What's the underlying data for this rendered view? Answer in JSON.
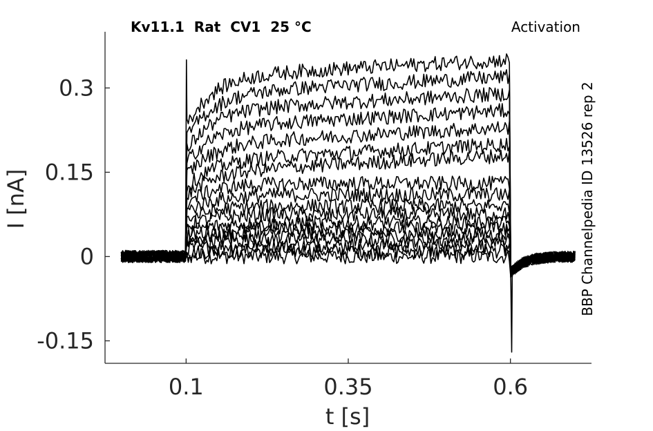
{
  "header": {
    "title": "Kv11.1  Rat  CV1  25 °C",
    "protocol": "Activation",
    "source": "BBP Channelpedia ID 13526 rep 2"
  },
  "chart_data": {
    "type": "line",
    "title": "Kv11.1  Rat  CV1  25 °C",
    "xlabel": "t [s]",
    "ylabel": "I [nA]",
    "xlim": [
      -0.025,
      0.725
    ],
    "ylim": [
      -0.19,
      0.4
    ],
    "xticks": [
      0.1,
      0.35,
      0.6
    ],
    "xtick_labels": [
      "0.1",
      "0.35",
      "0.6"
    ],
    "yticks": [
      -0.15,
      0,
      0.15,
      0.3
    ],
    "ytick_labels": [
      "-0.15",
      "0",
      "0.15",
      "0.3"
    ],
    "grid": false,
    "line_color": "#000000",
    "stimulus": {
      "step_on": 0.1,
      "step_off": 0.6,
      "onset_spike_peak": 0.35,
      "offset_tail_min": -0.17
    },
    "series_plateau_levels_nA": [
      0.0,
      0.01,
      0.02,
      0.03,
      0.04,
      0.05,
      0.06,
      0.075,
      0.09,
      0.11,
      0.13,
      0.15,
      0.17,
      0.2,
      0.23,
      0.26,
      0.29,
      0.32
    ]
  }
}
